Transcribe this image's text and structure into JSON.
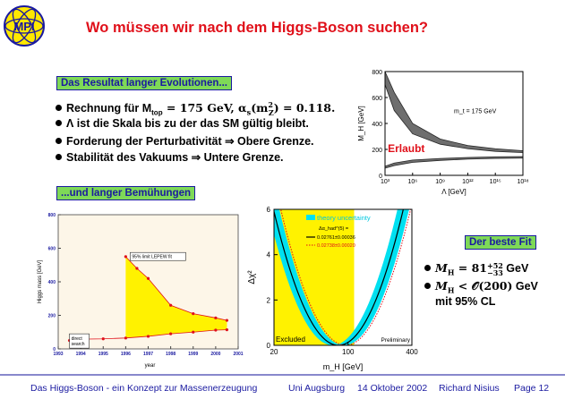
{
  "title": "Wo müssen wir nach dem Higgs-Boson suchen?",
  "logo_text": "MPI",
  "section1_label": "Das Resultat langer Evolutionen...",
  "section2_label": "...und langer Bemühungen",
  "fit_label": "Der beste Fit",
  "bullets": [
    {
      "prefix": "Rechnung für M",
      "sub": "top",
      "math": " = 175 GeV, α",
      "math_sub": "s",
      "math_rest": "(m",
      "sup": "2",
      "sub2": "Z",
      "tail": ") = 0.118."
    },
    {
      "text": "Λ ist die Skala bis zu der das SM gültig bleibt."
    },
    {
      "text": "Forderung der Perturbativität ⇒ Obere Grenze."
    },
    {
      "text": "Stabilität des Vakuums ⇒ Untere Grenze."
    }
  ],
  "fit_bullets": [
    {
      "lhs": "M",
      "lhs_sub": "H",
      "op": " = 81",
      "sup": "+52",
      "subv": "−33",
      "unit": " GeV"
    },
    {
      "lhs": "M",
      "lhs_sub": "H",
      "op": " < 𝒪(200)",
      "unit": " GeV"
    },
    {
      "text": "mit 95% CL"
    }
  ],
  "footer": {
    "talk": "Das Higgs-Boson - ein Konzept zur Massenerzeugung",
    "place": "Uni Augsburg",
    "date": "14 Oktober 2002",
    "author": "Richard Nisius",
    "page": "Page 12"
  },
  "colors": {
    "title": "#e0101a",
    "label_bg": "#7ed957",
    "label_fg": "#1a1aa0",
    "band": "#fff200",
    "cyan": "#00e0f0"
  },
  "chart_data": [
    {
      "type": "area",
      "xlabel": "Λ [GeV]",
      "ylabel": "M_H [GeV]",
      "x_ticks": [
        "10³",
        "10⁶",
        "10⁹",
        "10¹²",
        "10¹⁵",
        "10¹⁸"
      ],
      "x_log_exponents": [
        3,
        6,
        9,
        12,
        15,
        18
      ],
      "y_ticks": [
        0,
        200,
        400,
        600,
        800
      ],
      "ylim": [
        0,
        800
      ],
      "annotation": "m_t = 175 GeV",
      "region_label": "Erlaubt",
      "upper_band": {
        "log_lambda": [
          3,
          4,
          6,
          9,
          12,
          15,
          18
        ],
        "low": [
          700,
          500,
          320,
          240,
          205,
          185,
          175
        ],
        "high": [
          800,
          640,
          400,
          280,
          230,
          205,
          190
        ]
      },
      "lower_band": {
        "log_lambda": [
          3,
          4,
          6,
          9,
          12,
          15,
          18
        ],
        "low": [
          55,
          75,
          100,
          115,
          125,
          130,
          133
        ],
        "high": [
          70,
          95,
          118,
          130,
          138,
          143,
          145
        ]
      }
    },
    {
      "type": "area",
      "xlabel": "year",
      "ylabel": "Higgs mass [GeV]",
      "xlim": [
        1993,
        2001
      ],
      "ylim": [
        0,
        800
      ],
      "x_ticks": [
        1993,
        1994,
        1995,
        1996,
        1997,
        1998,
        1999,
        2000,
        2001
      ],
      "y_ticks": [
        0,
        200,
        400,
        600,
        800
      ],
      "annotation_band": "95% limit LEPEW fit",
      "annotation_direct": "direct search",
      "upper_limit": {
        "x": [
          1996.0,
          1996.5,
          1997.0,
          1998.0,
          1999.0,
          2000.0,
          2000.5
        ],
        "y": [
          550,
          480,
          420,
          260,
          210,
          185,
          170
        ]
      },
      "direct_search": {
        "x": [
          1993.5,
          1994.0,
          1995.0,
          1996.0,
          1997.0,
          1998.0,
          1999.0,
          2000.0,
          2000.5
        ],
        "y": [
          50,
          58,
          60,
          65,
          75,
          90,
          100,
          112,
          114
        ]
      }
    },
    {
      "type": "line",
      "xlabel": "m_H [GeV]",
      "ylabel": "Δχ²",
      "x_log": true,
      "x_ticks": [
        20,
        100,
        400
      ],
      "ylim": [
        0,
        6
      ],
      "y_ticks": [
        0,
        2,
        4,
        6
      ],
      "excluded_upto": 114,
      "excluded_label": "Excluded",
      "prelim_label": "Preliminary",
      "legend": [
        {
          "name": "theory uncertainty"
        },
        {
          "name": "Δα_had^(5) ="
        },
        {
          "name": "0.02761±0.00036"
        },
        {
          "name": "0.02738±0.00020"
        }
      ],
      "curve_solid": {
        "min_mh": 81,
        "width": 0.5
      },
      "curve_dotted": {
        "min_mh": 95,
        "width": 0.5
      },
      "band_halfwidth_logmh": 0.055
    }
  ]
}
